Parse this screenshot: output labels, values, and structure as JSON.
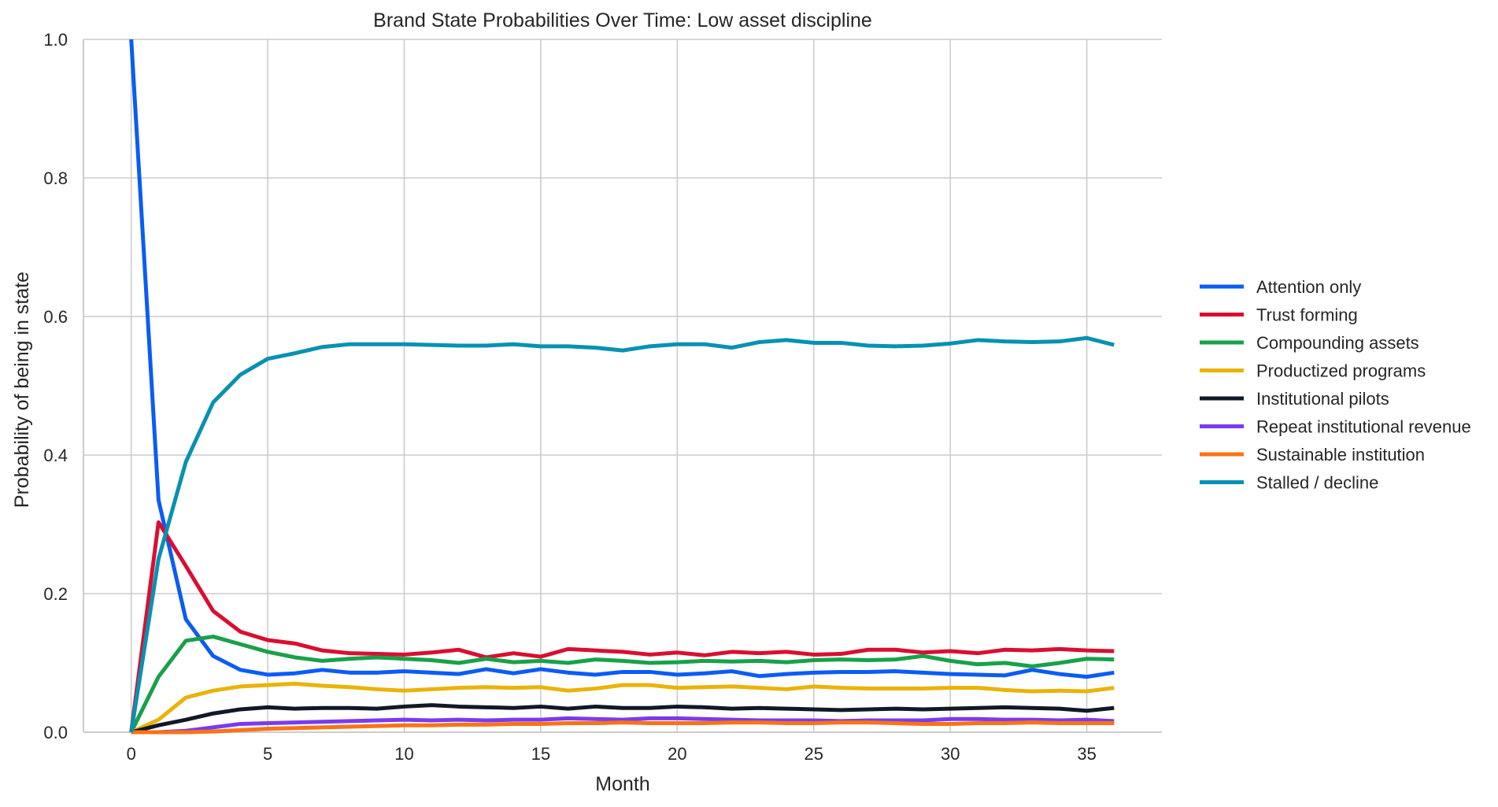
{
  "chart_data": {
    "type": "line",
    "title": "Brand State Probabilities Over Time: Low asset discipline",
    "xlabel": "Month",
    "ylabel": "Probability of being in state",
    "xlim": [
      -1.75,
      37.75
    ],
    "ylim": [
      0,
      1
    ],
    "xticks": [
      0,
      5,
      10,
      15,
      20,
      25,
      30,
      35
    ],
    "yticks": [
      0.0,
      0.2,
      0.4,
      0.6,
      0.8,
      1.0
    ],
    "ytick_labels": [
      "0.0",
      "0.2",
      "0.4",
      "0.6",
      "0.8",
      "1.0"
    ],
    "grid": true,
    "legend": "right, outside plot",
    "x": [
      0,
      1,
      2,
      3,
      4,
      5,
      6,
      7,
      8,
      9,
      10,
      11,
      12,
      13,
      14,
      15,
      16,
      17,
      18,
      19,
      20,
      21,
      22,
      23,
      24,
      25,
      26,
      27,
      28,
      29,
      30,
      31,
      32,
      33,
      34,
      35,
      36
    ],
    "series": [
      {
        "name": "Attention only",
        "color": "#0b5cf5",
        "values": [
          1.0,
          0.335,
          0.163,
          0.11,
          0.09,
          0.083,
          0.085,
          0.09,
          0.086,
          0.086,
          0.088,
          0.086,
          0.084,
          0.091,
          0.085,
          0.091,
          0.086,
          0.083,
          0.087,
          0.087,
          0.083,
          0.085,
          0.088,
          0.081,
          0.084,
          0.086,
          0.087,
          0.087,
          0.088,
          0.086,
          0.084,
          0.083,
          0.082,
          0.09,
          0.084,
          0.08,
          0.086
        ]
      },
      {
        "name": "Trust forming",
        "color": "#d90f31",
        "values": [
          0.0,
          0.303,
          0.24,
          0.175,
          0.145,
          0.133,
          0.128,
          0.118,
          0.114,
          0.113,
          0.112,
          0.115,
          0.119,
          0.108,
          0.114,
          0.109,
          0.12,
          0.118,
          0.116,
          0.112,
          0.115,
          0.111,
          0.116,
          0.114,
          0.116,
          0.112,
          0.113,
          0.119,
          0.119,
          0.115,
          0.117,
          0.114,
          0.119,
          0.118,
          0.12,
          0.118,
          0.117
        ]
      },
      {
        "name": "Compounding assets",
        "color": "#18a14a",
        "values": [
          0.0,
          0.08,
          0.132,
          0.138,
          0.127,
          0.116,
          0.108,
          0.103,
          0.106,
          0.108,
          0.106,
          0.104,
          0.1,
          0.106,
          0.101,
          0.103,
          0.1,
          0.105,
          0.103,
          0.1,
          0.101,
          0.103,
          0.102,
          0.103,
          0.101,
          0.104,
          0.105,
          0.104,
          0.105,
          0.11,
          0.103,
          0.098,
          0.1,
          0.095,
          0.1,
          0.106,
          0.105
        ]
      },
      {
        "name": "Productized programs",
        "color": "#eab308",
        "values": [
          0.0,
          0.018,
          0.05,
          0.06,
          0.066,
          0.068,
          0.07,
          0.067,
          0.065,
          0.062,
          0.06,
          0.062,
          0.064,
          0.065,
          0.064,
          0.065,
          0.06,
          0.063,
          0.068,
          0.068,
          0.064,
          0.065,
          0.066,
          0.064,
          0.062,
          0.066,
          0.064,
          0.063,
          0.063,
          0.063,
          0.064,
          0.064,
          0.061,
          0.059,
          0.06,
          0.059,
          0.064
        ]
      },
      {
        "name": "Institutional pilots",
        "color": "#111827",
        "values": [
          0.0,
          0.01,
          0.018,
          0.027,
          0.033,
          0.036,
          0.034,
          0.035,
          0.035,
          0.034,
          0.037,
          0.039,
          0.037,
          0.036,
          0.035,
          0.037,
          0.034,
          0.037,
          0.035,
          0.035,
          0.037,
          0.036,
          0.034,
          0.035,
          0.034,
          0.033,
          0.032,
          0.033,
          0.034,
          0.033,
          0.034,
          0.035,
          0.036,
          0.035,
          0.034,
          0.031,
          0.035
        ]
      },
      {
        "name": "Repeat institutional revenue",
        "color": "#7c3aed",
        "values": [
          0.0,
          0.0,
          0.002,
          0.007,
          0.012,
          0.013,
          0.014,
          0.015,
          0.016,
          0.017,
          0.018,
          0.017,
          0.018,
          0.017,
          0.018,
          0.018,
          0.02,
          0.019,
          0.018,
          0.02,
          0.02,
          0.019,
          0.018,
          0.017,
          0.017,
          0.017,
          0.016,
          0.017,
          0.017,
          0.017,
          0.019,
          0.019,
          0.018,
          0.018,
          0.017,
          0.018,
          0.016
        ]
      },
      {
        "name": "Sustainable institution",
        "color": "#f97316",
        "values": [
          0.0,
          0.0,
          0.0,
          0.001,
          0.003,
          0.005,
          0.006,
          0.007,
          0.008,
          0.009,
          0.01,
          0.01,
          0.011,
          0.011,
          0.012,
          0.012,
          0.013,
          0.013,
          0.014,
          0.013,
          0.013,
          0.013,
          0.014,
          0.014,
          0.013,
          0.013,
          0.014,
          0.014,
          0.013,
          0.012,
          0.012,
          0.013,
          0.013,
          0.014,
          0.013,
          0.013,
          0.013
        ]
      },
      {
        "name": "Stalled / decline",
        "color": "#0891b2",
        "values": [
          0.0,
          0.25,
          0.39,
          0.476,
          0.516,
          0.539,
          0.547,
          0.556,
          0.56,
          0.56,
          0.56,
          0.559,
          0.558,
          0.558,
          0.56,
          0.557,
          0.557,
          0.555,
          0.551,
          0.557,
          0.56,
          0.56,
          0.555,
          0.563,
          0.566,
          0.562,
          0.562,
          0.558,
          0.557,
          0.558,
          0.561,
          0.566,
          0.564,
          0.563,
          0.564,
          0.569,
          0.559
        ]
      }
    ]
  }
}
